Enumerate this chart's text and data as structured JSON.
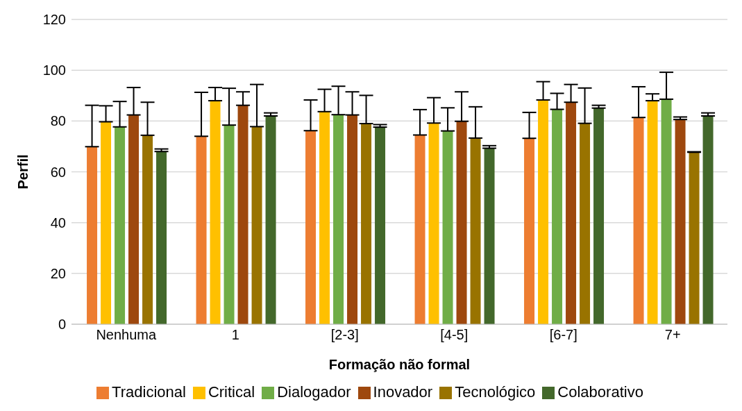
{
  "chart_data": {
    "type": "bar",
    "xlabel": "Formação não formal",
    "ylabel": "Perfil",
    "categories": [
      "Nenhuma",
      "1",
      "[2-3]",
      "[4-5]",
      "[6-7]",
      "7+"
    ],
    "ylim": [
      0,
      120
    ],
    "yticks": [
      0,
      20,
      40,
      60,
      80,
      100,
      120
    ],
    "grid": "y",
    "legend": "bottom",
    "series": [
      {
        "name": "Tradicional",
        "color": "#ed7d31",
        "values": [
          69.9,
          74.0,
          76.2,
          74.5,
          73.2,
          81.4
        ],
        "errors": [
          [
            69.9,
            86.2
          ],
          [
            74.0,
            91.3
          ],
          [
            76.2,
            88.3
          ],
          [
            74.5,
            84.5
          ],
          [
            73.2,
            83.4
          ],
          [
            81.4,
            93.5
          ]
        ]
      },
      {
        "name": "Critical",
        "color": "#ffc000",
        "values": [
          79.7,
          88.0,
          83.7,
          79.2,
          88.3,
          88.0
        ],
        "errors": [
          [
            79.7,
            86.0
          ],
          [
            88.0,
            93.2
          ],
          [
            83.7,
            92.5
          ],
          [
            79.2,
            89.2
          ],
          [
            88.3,
            95.5
          ],
          [
            88.0,
            90.7
          ]
        ]
      },
      {
        "name": "Dialogador",
        "color": "#70ad47",
        "values": [
          77.7,
          78.4,
          82.5,
          76.1,
          84.6,
          88.6
        ],
        "errors": [
          [
            77.7,
            87.7
          ],
          [
            78.4,
            92.9
          ],
          [
            82.5,
            93.7
          ],
          [
            76.1,
            85.2
          ],
          [
            84.6,
            90.9
          ],
          [
            88.6,
            99.2
          ]
        ]
      },
      {
        "name": "Inovador",
        "color": "#9e480e",
        "values": [
          82.4,
          86.2,
          82.4,
          79.9,
          87.4,
          80.6
        ],
        "errors": [
          [
            82.4,
            93.2
          ],
          [
            86.2,
            91.5
          ],
          [
            82.4,
            91.5
          ],
          [
            79.9,
            91.5
          ],
          [
            87.4,
            94.4
          ],
          [
            80.6,
            81.6
          ]
        ]
      },
      {
        "name": "Tecnológico",
        "color": "#997300",
        "values": [
          74.4,
          77.8,
          79.0,
          73.3,
          79.1,
          67.7
        ],
        "errors": [
          [
            74.4,
            87.4
          ],
          [
            77.8,
            94.4
          ],
          [
            79.0,
            90.1
          ],
          [
            73.3,
            85.6
          ],
          [
            79.1,
            93.0
          ],
          [
            67.7,
            67.9
          ]
        ]
      },
      {
        "name": "Colaborativo",
        "color": "#43682b",
        "values": [
          68.0,
          82.0,
          77.6,
          69.3,
          85.1,
          82.0
        ],
        "errors": [
          [
            68.0,
            69.0
          ],
          [
            82.0,
            83.2
          ],
          [
            77.6,
            78.6
          ],
          [
            69.3,
            70.3
          ],
          [
            85.1,
            86.2
          ],
          [
            82.0,
            83.2
          ]
        ]
      }
    ]
  }
}
